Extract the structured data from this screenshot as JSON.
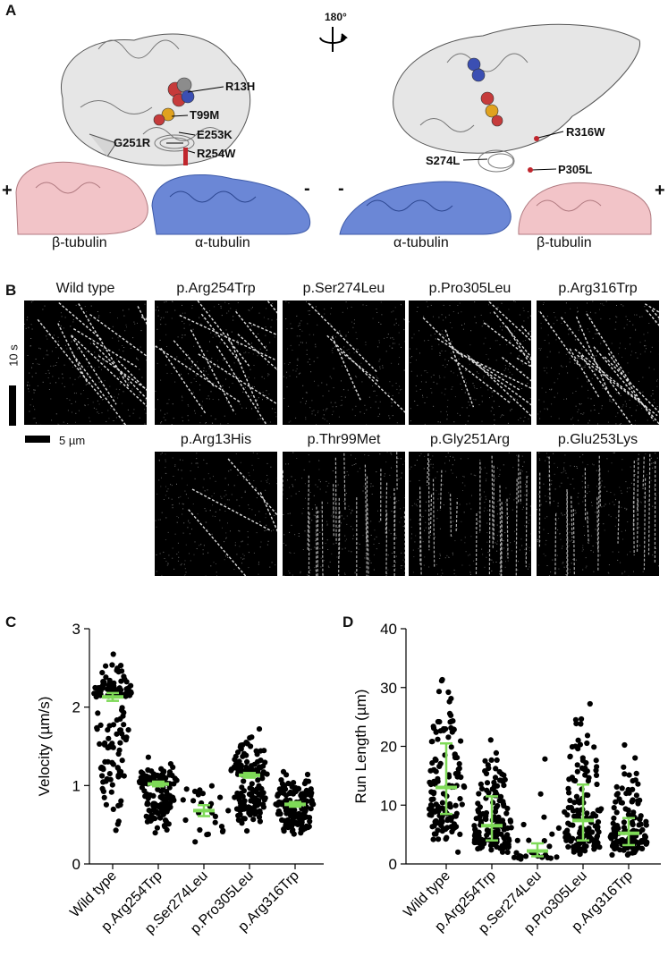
{
  "panel_a": {
    "letter": "A",
    "rotation": "180°",
    "plus": "+",
    "minus": "-",
    "left_mutations": [
      "R13H",
      "T99M",
      "E253K",
      "G251R",
      "R254W"
    ],
    "right_mutations": [
      "R316W",
      "S274L",
      "P305L"
    ],
    "left_labels": [
      "β-tubulin",
      "α-tubulin"
    ],
    "right_labels": [
      "α-tubulin",
      "β-tubulin"
    ]
  },
  "panel_b": {
    "letter": "B",
    "kymographs_row1": [
      "Wild type",
      "p.Arg254Trp",
      "p.Ser274Leu",
      "p.Pro305Leu",
      "p.Arg316Trp"
    ],
    "kymographs_row2": [
      "p.Arg13His",
      "p.Thr99Met",
      "p.Gly251Arg",
      "p.Glu253Lys"
    ],
    "time_scale": "10 s",
    "length_scale": "5 µm"
  },
  "panel_c": {
    "letter": "C"
  },
  "panel_d": {
    "letter": "D"
  },
  "colors": {
    "mean_marker": "#7ed957",
    "alpha": "#6b87d6",
    "beta": "#f2c4c8",
    "points": "#000000"
  },
  "chart_data": [
    {
      "type": "scatter",
      "ylabel": "Velocity (µm/s)",
      "ylim": [
        0,
        3
      ],
      "yticks": [
        0,
        1,
        2,
        3
      ],
      "categories": [
        "Wild type",
        "p.Arg254Trp",
        "p.Ser274Leu",
        "p.Pro305Leu",
        "p.Arg316Trp"
      ],
      "center": [
        2.13,
        1.02,
        0.68,
        1.13,
        0.76
      ],
      "error": [
        0.05,
        0.03,
        0.07,
        0.03,
        0.03
      ],
      "spread_low": [
        0.3,
        0.33,
        0.23,
        0.35,
        0.32
      ],
      "spread_high": [
        2.75,
        1.45,
        1.42,
        1.85,
        1.4
      ]
    },
    {
      "type": "scatter",
      "ylabel": "Run Length (µm)",
      "ylim": [
        0,
        40
      ],
      "yticks": [
        0,
        10,
        20,
        30,
        40
      ],
      "categories": [
        "Wild type",
        "p.Arg254Trp",
        "p.Ser274Leu",
        "p.Pro305Leu",
        "p.Arg316Trp"
      ],
      "center": [
        13.0,
        6.5,
        2.2,
        7.4,
        5.2
      ],
      "q1": [
        8.5,
        4.0,
        1.3,
        4.0,
        3.2
      ],
      "q3": [
        20.5,
        11.5,
        3.5,
        13.5,
        7.8
      ],
      "spread_low": [
        1.5,
        1.0,
        0.5,
        0.5,
        0.8
      ],
      "spread_high": [
        35.5,
        28.2,
        25.0,
        33.0,
        23.8
      ]
    }
  ]
}
